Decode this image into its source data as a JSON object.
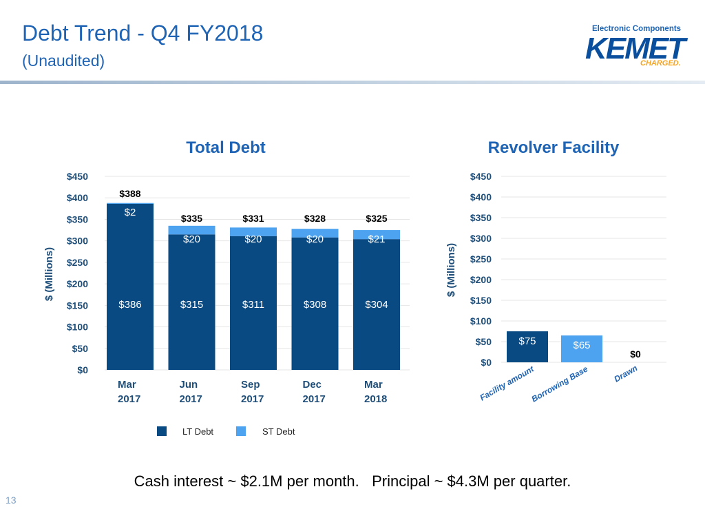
{
  "header": {
    "title": "Debt Trend - Q4 FY2018",
    "subtitle": "(Unaudited)"
  },
  "logo": {
    "tagline": "Electronic Components",
    "brand": "KEMET",
    "sub": "CHARGED."
  },
  "colors": {
    "accent": "#1f64b4",
    "lt_debt": "#0a4a83",
    "st_debt": "#4da3f0",
    "axis_text": "#1f4e79"
  },
  "chart_data": [
    {
      "type": "bar",
      "stacked": true,
      "title": "Total Debt",
      "ylabel": "$ (Millions)",
      "ylim": [
        0,
        450
      ],
      "yticks": [
        "$0",
        "$50",
        "$100",
        "$150",
        "$200",
        "$250",
        "$300",
        "$350",
        "$400",
        "$450"
      ],
      "categories": [
        [
          "Mar",
          "2017"
        ],
        [
          "Jun",
          "2017"
        ],
        [
          "Sep",
          "2017"
        ],
        [
          "Dec",
          "2017"
        ],
        [
          "Mar",
          "2018"
        ]
      ],
      "series": [
        {
          "name": "LT Debt",
          "values": [
            386,
            315,
            311,
            308,
            304
          ],
          "labels": [
            "$386",
            "$315",
            "$311",
            "$308",
            "$304"
          ]
        },
        {
          "name": "ST Debt",
          "values": [
            2,
            20,
            20,
            20,
            21
          ],
          "labels": [
            "$2",
            "$20",
            "$20",
            "$20",
            "$21"
          ]
        }
      ],
      "totals": [
        "$388",
        "$335",
        "$331",
        "$328",
        "$325"
      ],
      "legend": "bottom",
      "grid": true
    },
    {
      "type": "bar",
      "title": "Revolver Facility",
      "ylabel": "$ (Millions)",
      "ylim": [
        0,
        450
      ],
      "yticks": [
        "$0",
        "$50",
        "$100",
        "$150",
        "$200",
        "$250",
        "$300",
        "$350",
        "$400",
        "$450"
      ],
      "categories": [
        "Facility amount",
        "Borrowing Base",
        "Drawn"
      ],
      "values": [
        75,
        65,
        0
      ],
      "labels": [
        "$75",
        "$65",
        "$0"
      ],
      "grid": true
    }
  ],
  "legend": {
    "lt": "LT Debt",
    "st": "ST Debt"
  },
  "footer": {
    "note": "Cash interest ~ $2.1M per month.   Principal ~ $4.3M per quarter.",
    "page": "13"
  }
}
